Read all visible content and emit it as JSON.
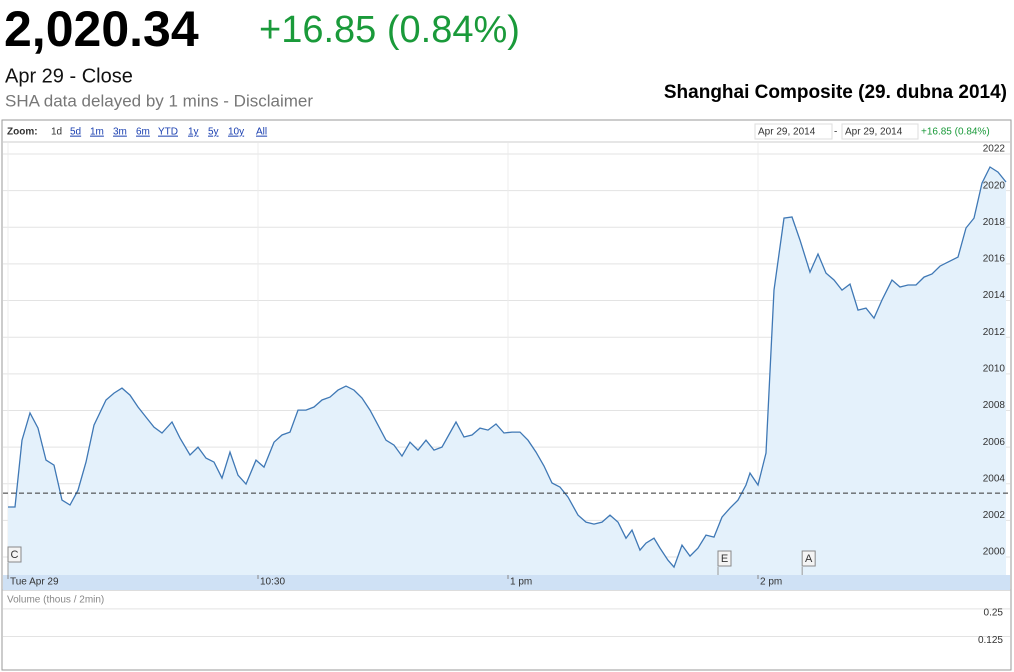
{
  "header": {
    "price": "2,020.34",
    "change": "+16.85 (0.84%)",
    "status": "Apr 29 - Close",
    "note": "SHA data delayed by 1 mins - Disclaimer",
    "title": "Shanghai Composite (29. dubna 2014)"
  },
  "toolbar": {
    "zoom_label": "Zoom:",
    "zoom_options": [
      "1d",
      "5d",
      "1m",
      "3m",
      "6m",
      "YTD",
      "1y",
      "5y",
      "10y",
      "All"
    ],
    "range_start": "Apr 29, 2014",
    "range_separator": "-",
    "range_end": "Apr 29, 2014",
    "range_change": "+16.85 (0.84%)"
  },
  "chart_data": {
    "type": "area",
    "color": "#3f78b5",
    "fill": "#e4f1fb",
    "x": [
      0,
      1.68,
      3.36,
      5.28,
      7.2,
      9.12,
      11.04,
      12.96,
      14.88,
      16.8,
      18.72,
      20.64,
      23.52,
      25.44,
      27.36,
      29.28,
      31.2,
      33.12,
      35.04,
      36.96,
      39.36,
      41.28,
      43.68,
      45.6,
      47.52,
      49.44,
      51.36,
      53.28,
      55.2,
      57.12,
      59.52,
      61.44,
      63.84,
      65.76,
      67.68,
      69.6,
      71.52,
      73.44,
      75.36,
      77.28,
      79.2,
      81.12,
      83.04,
      84.96,
      86.88,
      88.8,
      90.72,
      92.64,
      94.56,
      96.48,
      98.4,
      100.32,
      102.24,
      104.16,
      107.52,
      109.44,
      111.36,
      113.28,
      115.2,
      117.12,
      119.04,
      120.96,
      122.88,
      124.8,
      126.72,
      128.64,
      130.56,
      132.48,
      134.4,
      136.8,
      138.72,
      140.64,
      142.56,
      144.48,
      146.4,
      148.32,
      149.76,
      151.68,
      153.12,
      155.04,
      156.48,
      158.4,
      159.84,
      161.76,
      163.68,
      165.6,
      167.52,
      169.44,
      171.36,
      173.28,
      175.2,
      177.12,
      178.08,
      180,
      181.92,
      183.84,
      186.24,
      188.16,
      190.08,
      192.48,
      194.4,
      196.32,
      198.24,
      200.16,
      202.08,
      204,
      205.92,
      207.84,
      209.76,
      212.16,
      214.08,
      216,
      217.92,
      219.84,
      221.76,
      223.68,
      225.6,
      228,
      229.92,
      231.84,
      233.76,
      235.68,
      237.6,
      239.52
    ],
    "values": [
      2002.73,
      2002.73,
      2006.38,
      2007.86,
      2007.04,
      2005.29,
      2005.02,
      2003.11,
      2002.84,
      2003.65,
      2005.18,
      2007.2,
      2008.57,
      2008.95,
      2009.22,
      2008.84,
      2008.19,
      2007.64,
      2007.09,
      2006.77,
      2007.37,
      2006.49,
      2005.57,
      2006.0,
      2005.4,
      2005.18,
      2004.31,
      2005.73,
      2004.47,
      2003.98,
      2005.29,
      2004.91,
      2006.27,
      2006.66,
      2006.82,
      2008.02,
      2008.02,
      2008.19,
      2008.57,
      2008.73,
      2009.11,
      2009.33,
      2009.11,
      2008.68,
      2008.02,
      2007.2,
      2006.38,
      2006.11,
      2005.51,
      2006.27,
      2005.84,
      2006.38,
      2005.84,
      2006.0,
      2007.37,
      2006.55,
      2006.66,
      2007.04,
      2006.93,
      2007.26,
      2006.77,
      2006.82,
      2006.82,
      2006.38,
      2005.73,
      2004.97,
      2004.04,
      2003.82,
      2003.27,
      2002.29,
      2001.91,
      2001.8,
      2001.91,
      2002.29,
      2001.91,
      2001.03,
      2001.47,
      2000.38,
      2000.76,
      2001.03,
      2000.49,
      1999.83,
      1999.45,
      2000.65,
      2000.05,
      2000.49,
      2001.2,
      2001.09,
      2002.18,
      2002.67,
      2003.11,
      2003.93,
      2004.58,
      2003.93,
      2005.68,
      2014.57,
      2018.5,
      2018.56,
      2017.3,
      2015.55,
      2016.54,
      2015.5,
      2015.12,
      2014.57,
      2014.9,
      2013.48,
      2013.59,
      2013.04,
      2014.03,
      2015.12,
      2014.74,
      2014.85,
      2014.85,
      2015.28,
      2015.45,
      2015.88,
      2016.1,
      2016.37,
      2017.96,
      2018.5,
      2020.41,
      2021.29,
      2021.01,
      2020.47
    ],
    "xlim": [
      0,
      240
    ],
    "ylim": [
      1999.02,
      2022.6
    ],
    "xticks": [
      {
        "value": 0,
        "label": "Tue Apr 29"
      },
      {
        "value": 60,
        "label": "10:30"
      },
      {
        "value": 120,
        "label": "1 pm"
      },
      {
        "value": 180,
        "label": "2 pm"
      }
    ],
    "yticks": [
      2000,
      2002,
      2004,
      2006,
      2008,
      2010,
      2012,
      2014,
      2016,
      2018,
      2020,
      2022
    ],
    "grid": true,
    "previous_close": 2003.49,
    "flags": [
      {
        "label": "C",
        "x": 0
      },
      {
        "label": "E",
        "x": 170.4
      },
      {
        "label": "A",
        "x": 190.6
      }
    ]
  },
  "volume": {
    "label": "Volume (thous / 2min)",
    "ylim": [
      0,
      0.345
    ],
    "yticks": [
      0.25,
      0.125
    ]
  }
}
